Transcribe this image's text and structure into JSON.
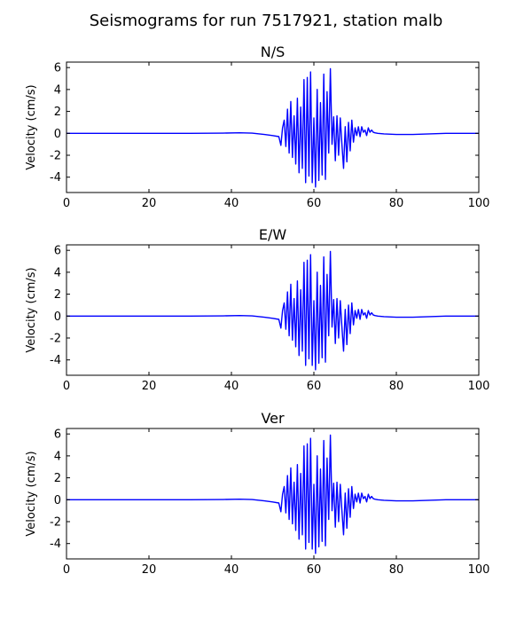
{
  "figure": {
    "title": "Seismograms for run 7517921, station malb"
  },
  "chart_data": [
    {
      "type": "line",
      "title": "N/S",
      "xlabel": "",
      "ylabel": "Velocity (cm/s)",
      "xlim": [
        0,
        100
      ],
      "ylim": [
        -5.4,
        6.5
      ],
      "xticks": [
        0,
        20,
        40,
        60,
        80,
        100
      ],
      "yticks": [
        -4,
        -2,
        0,
        2,
        4,
        6
      ],
      "grid": false,
      "series": [
        {
          "color": "#0000ff",
          "x": [
            0,
            10,
            20,
            30,
            38,
            42,
            45,
            48,
            50,
            51.5,
            52,
            52.4,
            52.8,
            53.2,
            53.6,
            54,
            54.4,
            54.8,
            55.2,
            55.6,
            56,
            56.4,
            56.8,
            57.2,
            57.6,
            58,
            58.4,
            58.8,
            59.2,
            59.6,
            60,
            60.4,
            60.8,
            61.2,
            61.6,
            62,
            62.4,
            62.8,
            63.2,
            63.6,
            64,
            64.4,
            64.8,
            65.2,
            65.6,
            66,
            66.4,
            66.8,
            67.2,
            67.6,
            68,
            68.4,
            68.8,
            69.2,
            69.6,
            70,
            70.4,
            70.8,
            71.2,
            71.6,
            72,
            72.4,
            72.8,
            73.2,
            73.6,
            74,
            74.4,
            74.8,
            75.5,
            77,
            80,
            84,
            88,
            92,
            96,
            100
          ],
          "y": [
            0,
            0,
            0,
            0,
            0.02,
            0.05,
            0.02,
            -0.1,
            -0.2,
            -0.3,
            -1.1,
            0.5,
            1.2,
            -1.2,
            2.2,
            -1.8,
            2.9,
            -2.2,
            1.6,
            -2.8,
            3.2,
            -3.6,
            2.4,
            -3.2,
            4.9,
            -4.5,
            5.1,
            -3.9,
            5.6,
            -4.5,
            1.4,
            -4.9,
            4.0,
            -4.3,
            2.8,
            -3.8,
            5.4,
            -4.2,
            3.8,
            -1.8,
            5.9,
            -1.0,
            1.5,
            -2.5,
            1.6,
            -2.0,
            1.4,
            -1.0,
            -3.2,
            0.6,
            -2.6,
            1.0,
            -1.6,
            1.2,
            -0.8,
            0.5,
            -0.2,
            0.6,
            -0.3,
            0.6,
            0.1,
            0.3,
            -0.2,
            0.5,
            0.1,
            0.3,
            0.1,
            0.05,
            0.0,
            -0.05,
            -0.1,
            -0.1,
            -0.05,
            0.0,
            0.0,
            0.0
          ]
        }
      ]
    },
    {
      "type": "line",
      "title": "E/W",
      "xlabel": "",
      "ylabel": "Velocity (cm/s)",
      "xlim": [
        0,
        100
      ],
      "ylim": [
        -5.4,
        6.5
      ],
      "xticks": [
        0,
        20,
        40,
        60,
        80,
        100
      ],
      "yticks": [
        -4,
        -2,
        0,
        2,
        4,
        6
      ],
      "grid": false,
      "series": [
        {
          "color": "#0000ff",
          "x": [
            0,
            10,
            20,
            30,
            38,
            42,
            45,
            48,
            50,
            51.5,
            52,
            52.4,
            52.8,
            53.2,
            53.6,
            54,
            54.4,
            54.8,
            55.2,
            55.6,
            56,
            56.4,
            56.8,
            57.2,
            57.6,
            58,
            58.4,
            58.8,
            59.2,
            59.6,
            60,
            60.4,
            60.8,
            61.2,
            61.6,
            62,
            62.4,
            62.8,
            63.2,
            63.6,
            64,
            64.4,
            64.8,
            65.2,
            65.6,
            66,
            66.4,
            66.8,
            67.2,
            67.6,
            68,
            68.4,
            68.8,
            69.2,
            69.6,
            70,
            70.4,
            70.8,
            71.2,
            71.6,
            72,
            72.4,
            72.8,
            73.2,
            73.6,
            74,
            74.4,
            74.8,
            75.5,
            77,
            80,
            84,
            88,
            92,
            96,
            100
          ],
          "y": [
            0,
            0,
            0,
            0,
            0.02,
            0.05,
            0.02,
            -0.1,
            -0.2,
            -0.3,
            -1.1,
            0.5,
            1.2,
            -1.2,
            2.2,
            -1.8,
            2.9,
            -2.2,
            1.6,
            -2.8,
            3.2,
            -3.6,
            2.4,
            -3.2,
            4.9,
            -4.5,
            5.1,
            -3.9,
            5.6,
            -4.5,
            1.4,
            -4.9,
            4.0,
            -4.3,
            2.8,
            -3.8,
            5.4,
            -4.2,
            3.8,
            -1.8,
            5.9,
            -1.0,
            1.5,
            -2.5,
            1.6,
            -2.0,
            1.4,
            -1.0,
            -3.2,
            0.6,
            -2.6,
            1.0,
            -1.6,
            1.2,
            -0.8,
            0.5,
            -0.2,
            0.6,
            -0.3,
            0.6,
            0.1,
            0.3,
            -0.2,
            0.5,
            0.1,
            0.3,
            0.1,
            0.05,
            0.0,
            -0.05,
            -0.1,
            -0.1,
            -0.05,
            0.0,
            0.0,
            0.0
          ]
        }
      ]
    },
    {
      "type": "line",
      "title": "Ver",
      "xlabel": "",
      "ylabel": "Velocity (cm/s)",
      "xlim": [
        0,
        100
      ],
      "ylim": [
        -5.4,
        6.5
      ],
      "xticks": [
        0,
        20,
        40,
        60,
        80,
        100
      ],
      "yticks": [
        -4,
        -2,
        0,
        2,
        4,
        6
      ],
      "grid": false,
      "series": [
        {
          "color": "#0000ff",
          "x": [
            0,
            10,
            20,
            30,
            38,
            42,
            45,
            48,
            50,
            51.5,
            52,
            52.4,
            52.8,
            53.2,
            53.6,
            54,
            54.4,
            54.8,
            55.2,
            55.6,
            56,
            56.4,
            56.8,
            57.2,
            57.6,
            58,
            58.4,
            58.8,
            59.2,
            59.6,
            60,
            60.4,
            60.8,
            61.2,
            61.6,
            62,
            62.4,
            62.8,
            63.2,
            63.6,
            64,
            64.4,
            64.8,
            65.2,
            65.6,
            66,
            66.4,
            66.8,
            67.2,
            67.6,
            68,
            68.4,
            68.8,
            69.2,
            69.6,
            70,
            70.4,
            70.8,
            71.2,
            71.6,
            72,
            72.4,
            72.8,
            73.2,
            73.6,
            74,
            74.4,
            74.8,
            75.5,
            77,
            80,
            84,
            88,
            92,
            96,
            100
          ],
          "y": [
            0,
            0,
            0,
            0,
            0.02,
            0.05,
            0.02,
            -0.1,
            -0.2,
            -0.3,
            -1.1,
            0.5,
            1.2,
            -1.2,
            2.2,
            -1.8,
            2.9,
            -2.2,
            1.6,
            -2.8,
            3.2,
            -3.6,
            2.4,
            -3.2,
            4.9,
            -4.5,
            5.1,
            -3.9,
            5.6,
            -4.5,
            1.4,
            -4.9,
            4.0,
            -4.3,
            2.8,
            -3.8,
            5.4,
            -4.2,
            3.8,
            -1.8,
            5.9,
            -1.0,
            1.5,
            -2.5,
            1.6,
            -2.0,
            1.4,
            -1.0,
            -3.2,
            0.6,
            -2.6,
            1.0,
            -1.6,
            1.2,
            -0.8,
            0.5,
            -0.2,
            0.6,
            -0.3,
            0.6,
            0.1,
            0.3,
            -0.2,
            0.5,
            0.1,
            0.3,
            0.1,
            0.05,
            0.0,
            -0.05,
            -0.1,
            -0.1,
            -0.05,
            0.0,
            0.0,
            0.0
          ]
        }
      ]
    }
  ]
}
